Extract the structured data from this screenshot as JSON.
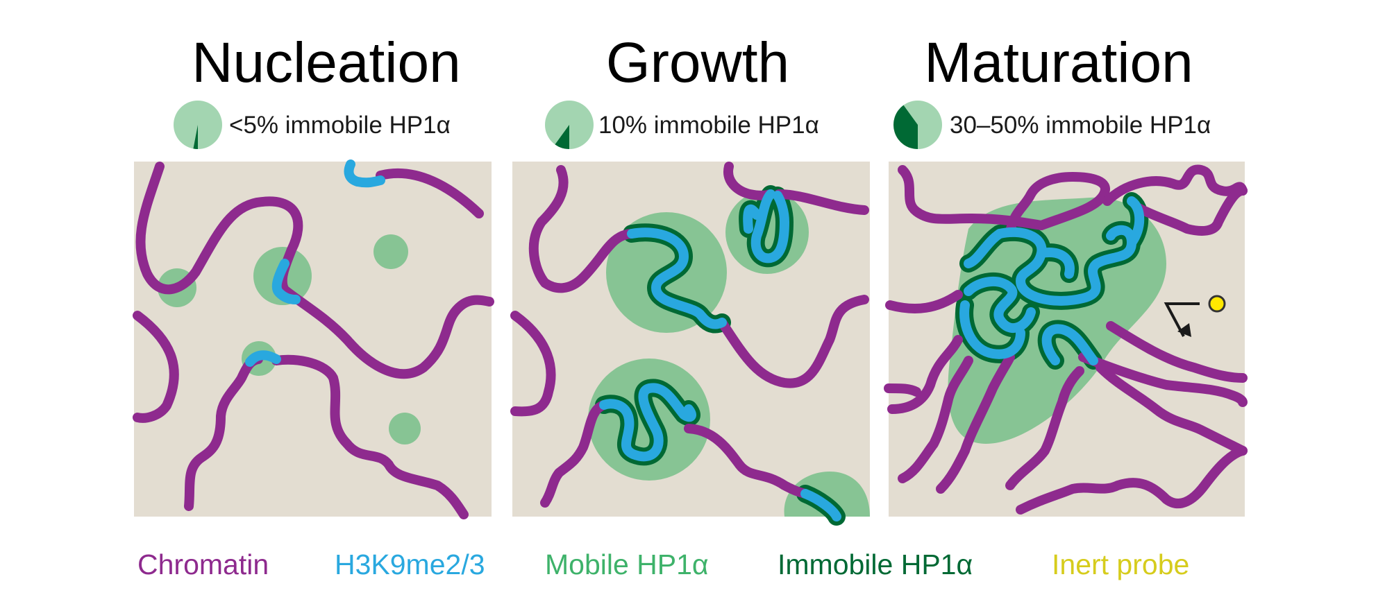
{
  "stages": [
    {
      "title": "Nucleation",
      "caption": "<5% immobile HP1α",
      "immobile_fraction": 0.03
    },
    {
      "title": "Growth",
      "caption": "10% immobile HP1α",
      "immobile_fraction": 0.1
    },
    {
      "title": "Maturation",
      "caption": "30–50% immobile HP1α",
      "immobile_fraction": 0.4
    }
  ],
  "legend": [
    {
      "label": "Chromatin",
      "color": "#8e2a8e"
    },
    {
      "label": "H3K9me2/3",
      "color": "#29a8df"
    },
    {
      "label": "Mobile HP1α",
      "color": "#3eb26a"
    },
    {
      "label": "Immobile HP1α",
      "color": "#006934"
    },
    {
      "label": "Inert probe",
      "color": "#d6cc1c"
    }
  ],
  "colors": {
    "panel_background": "#e3ddd1",
    "probe_fill": "#ffe800"
  }
}
